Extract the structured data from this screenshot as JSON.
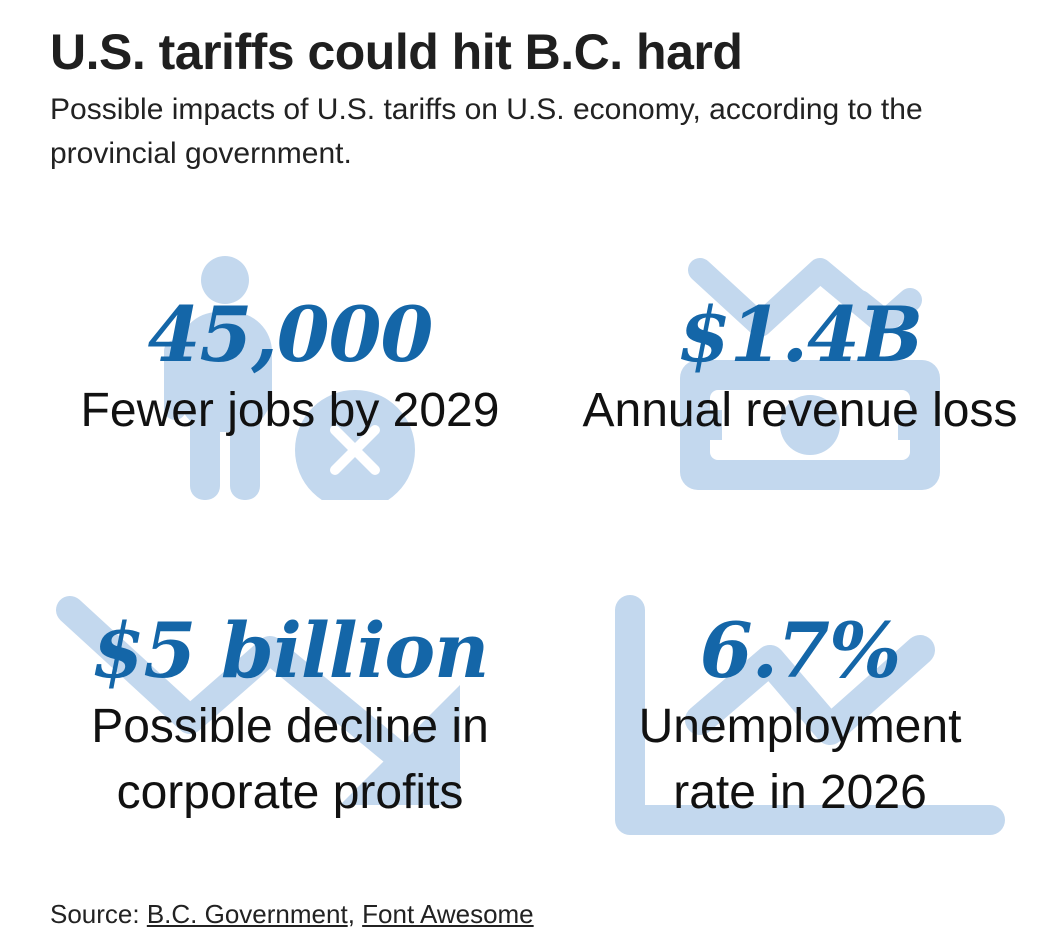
{
  "header": {
    "title": "U.S. tariffs could hit B.C. hard",
    "subtitle": "Possible impacts of U.S. tariffs on U.S. economy, according to the provincial government."
  },
  "stats": [
    {
      "value": "45,000",
      "label_line1": "Fewer jobs by 2029",
      "icon": "person-dollar-icon"
    },
    {
      "value": "$1.4B",
      "label_line1": "Annual revenue loss",
      "icon": "money-bill-trend-down-icon"
    },
    {
      "value": "$5 billion",
      "label_line1": "Possible decline in",
      "label_line2": "corporate profits",
      "icon": "arrow-trend-down-icon"
    },
    {
      "value": "6.7%",
      "label_line1": "Unemployment",
      "label_line2": "rate in 2026",
      "icon": "chart-line-up-icon"
    }
  ],
  "source": {
    "prefix": "Source: ",
    "link1": "B.C. Government",
    "separator": ", ",
    "link2": "Font Awesome"
  },
  "colors": {
    "value_blue": "#1466a8",
    "icon_light_blue": "#c3d8ee",
    "text": "#111111"
  }
}
